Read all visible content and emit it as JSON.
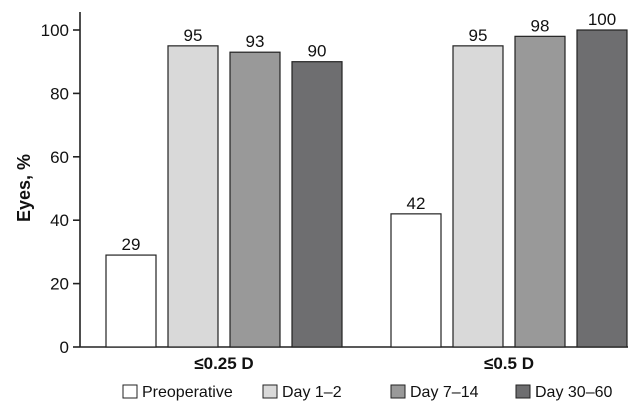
{
  "chart_data": {
    "type": "bar",
    "title": "",
    "xlabel": "",
    "ylabel": "Eyes, %",
    "ylim": [
      0,
      100
    ],
    "yticks": [
      "0",
      "20",
      "40",
      "60",
      "80",
      "100"
    ],
    "categories": [
      "≤0.25 D",
      "≤0.5 D"
    ],
    "series": [
      {
        "name": "Preoperative",
        "values": [
          29,
          42
        ],
        "labels": [
          "29",
          "42"
        ],
        "color": "#ffffff"
      },
      {
        "name": "Day 1–2",
        "values": [
          95,
          95
        ],
        "labels": [
          "95",
          "95"
        ],
        "color": "#d9d9d9"
      },
      {
        "name": "Day 7–14",
        "values": [
          93,
          98
        ],
        "labels": [
          "93",
          "98"
        ],
        "color": "#999999"
      },
      {
        "name": "Day 30–60",
        "values": [
          90,
          100
        ],
        "labels": [
          "90",
          "100"
        ],
        "color": "#6e6e70"
      }
    ],
    "legend": {
      "position": "bottom"
    },
    "grid": false
  }
}
